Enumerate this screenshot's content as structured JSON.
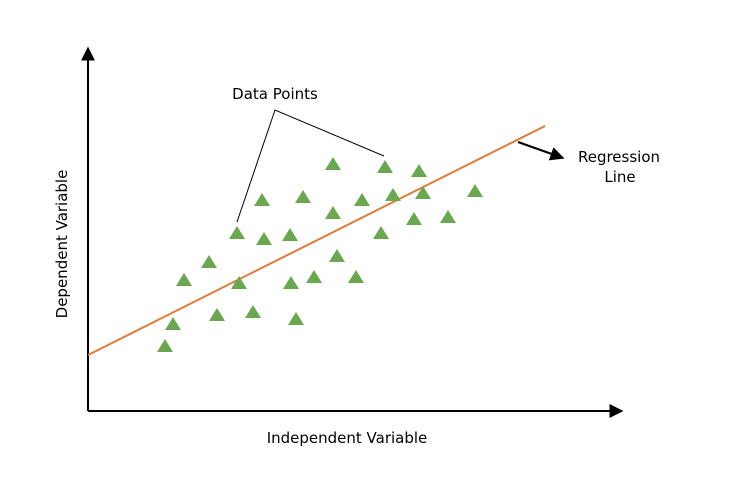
{
  "labels": {
    "x_axis": "Independent Variable",
    "y_axis": "Dependent Variable",
    "data_points": "Data Points",
    "regression_line_1": "Regression",
    "regression_line_2": "Line"
  },
  "colors": {
    "points": "#6aa84f",
    "regression": "#e07b39",
    "axis": "#000000"
  },
  "icon": "triangle-marker"
}
